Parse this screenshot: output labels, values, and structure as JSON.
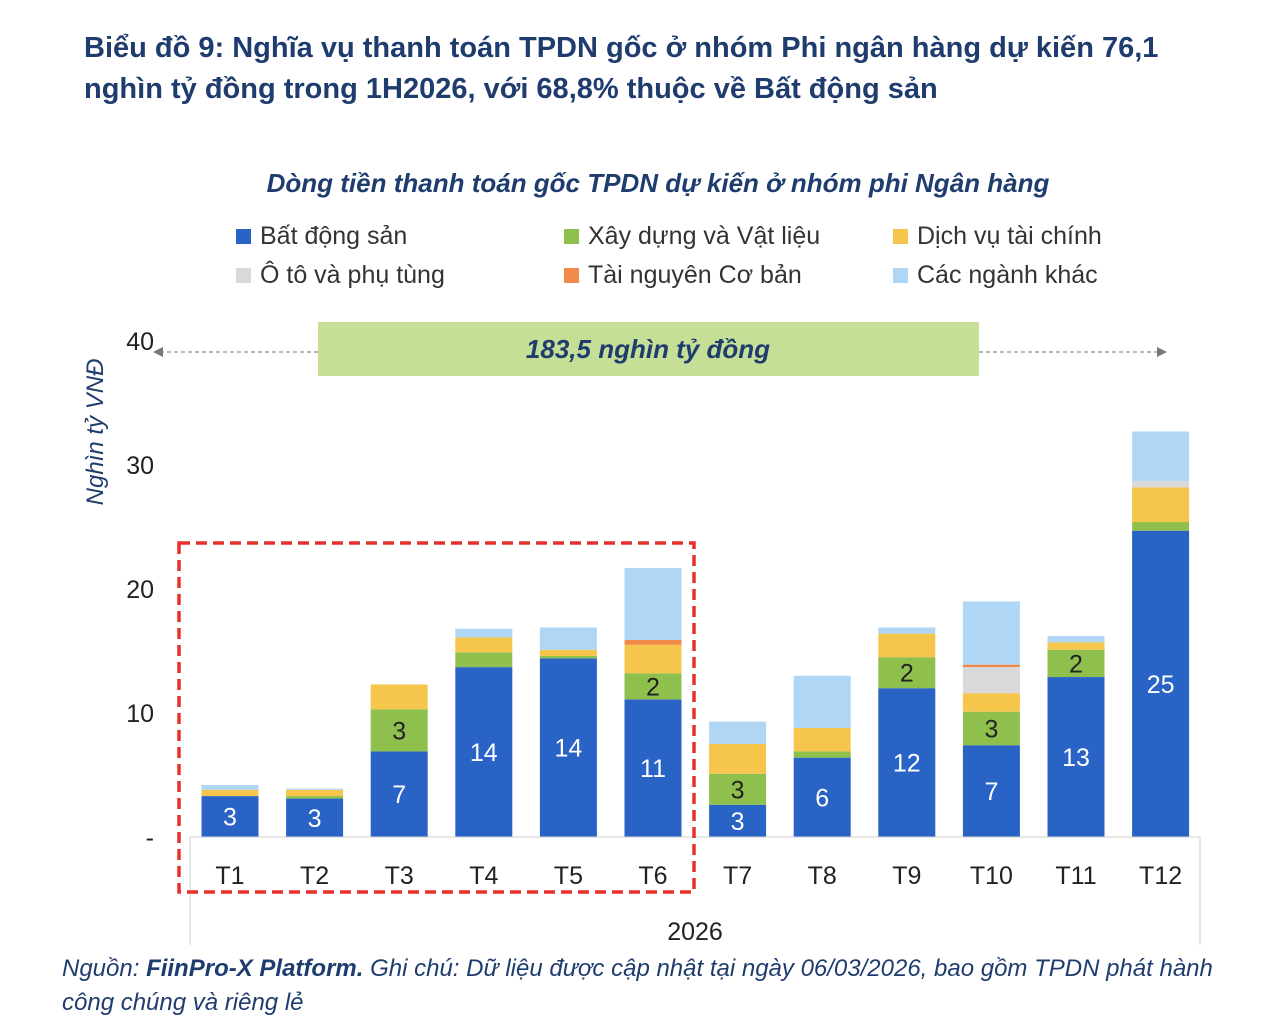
{
  "title": "Biểu đồ 9: Nghĩa vụ thanh toán TPDN gốc ở nhóm Phi ngân hàng dự kiến 76,1 nghìn tỷ đồng trong 1H2026, với 68,8% thuộc về Bất động sản",
  "footnote": {
    "source_label": "Nguồn: ",
    "source": "FiinPro-X Platform. ",
    "note_label": "Ghi chú: ",
    "note": "Dữ liệu được cập nhật tại ngày 06/03/2026, bao gồm TPDN phát hành công chúng và riêng lẻ"
  },
  "chart_data": {
    "type": "bar",
    "stacked": true,
    "title": "Dòng tiền thanh toán gốc TPDN dự kiến ở nhóm phi Ngân hàng",
    "ylabel": "Nghìn tỷ VNĐ",
    "xlabel": "2026",
    "ylim": [
      0,
      40
    ],
    "yticks": [
      {
        "v": 0,
        "label": "-"
      },
      {
        "v": 10,
        "label": "10"
      },
      {
        "v": 20,
        "label": "20"
      },
      {
        "v": 30,
        "label": "30"
      },
      {
        "v": 40,
        "label": "40"
      }
    ],
    "categories": [
      "T1",
      "T2",
      "T3",
      "T4",
      "T5",
      "T6",
      "T7",
      "T8",
      "T9",
      "T10",
      "T11",
      "T12"
    ],
    "legend_position": "top",
    "annotation": "183,5 nghìn tỷ đồng",
    "highlight": "T1–T6",
    "series": [
      {
        "name": "Bất động sản",
        "color": "#2a63c6",
        "values": [
          3.3,
          3.1,
          6.9,
          13.7,
          14.4,
          11.1,
          2.6,
          6.4,
          12.0,
          7.4,
          12.9,
          24.7
        ],
        "labels": [
          "3",
          "3",
          "7",
          "14",
          "14",
          "11",
          "3",
          "6",
          "12",
          "7",
          "13",
          "25"
        ]
      },
      {
        "name": "Xây dựng và Vật liệu",
        "color": "#8fc04e",
        "values": [
          0,
          0.2,
          3.4,
          1.2,
          0.2,
          2.1,
          2.5,
          0.5,
          2.5,
          2.7,
          2.2,
          0.7
        ],
        "labels": [
          "",
          "",
          "3",
          "",
          "",
          "2",
          "3",
          "",
          "2",
          "3",
          "2",
          ""
        ]
      },
      {
        "name": "Dịch vụ tài chính",
        "color": "#f5c54c",
        "values": [
          0.5,
          0.5,
          2.0,
          1.2,
          0.5,
          2.3,
          2.4,
          1.9,
          1.9,
          1.5,
          0.6,
          2.8
        ]
      },
      {
        "name": "Ô tô và phụ tùng",
        "color": "#d9d9d9",
        "values": [
          0,
          0,
          0,
          0,
          0,
          0,
          0,
          0,
          0,
          2.1,
          0,
          0.5
        ]
      },
      {
        "name": "Tài nguyên Cơ bản",
        "color": "#f08a4b",
        "values": [
          0,
          0,
          0,
          0,
          0,
          0.4,
          0,
          0,
          0,
          0.2,
          0,
          0
        ]
      },
      {
        "name": "Các ngành khác",
        "color": "#b0d6f5",
        "values": [
          0.4,
          0.1,
          0,
          0.7,
          1.8,
          5.8,
          1.8,
          4.2,
          0.5,
          5.1,
          0.5,
          4.0
        ]
      }
    ]
  }
}
